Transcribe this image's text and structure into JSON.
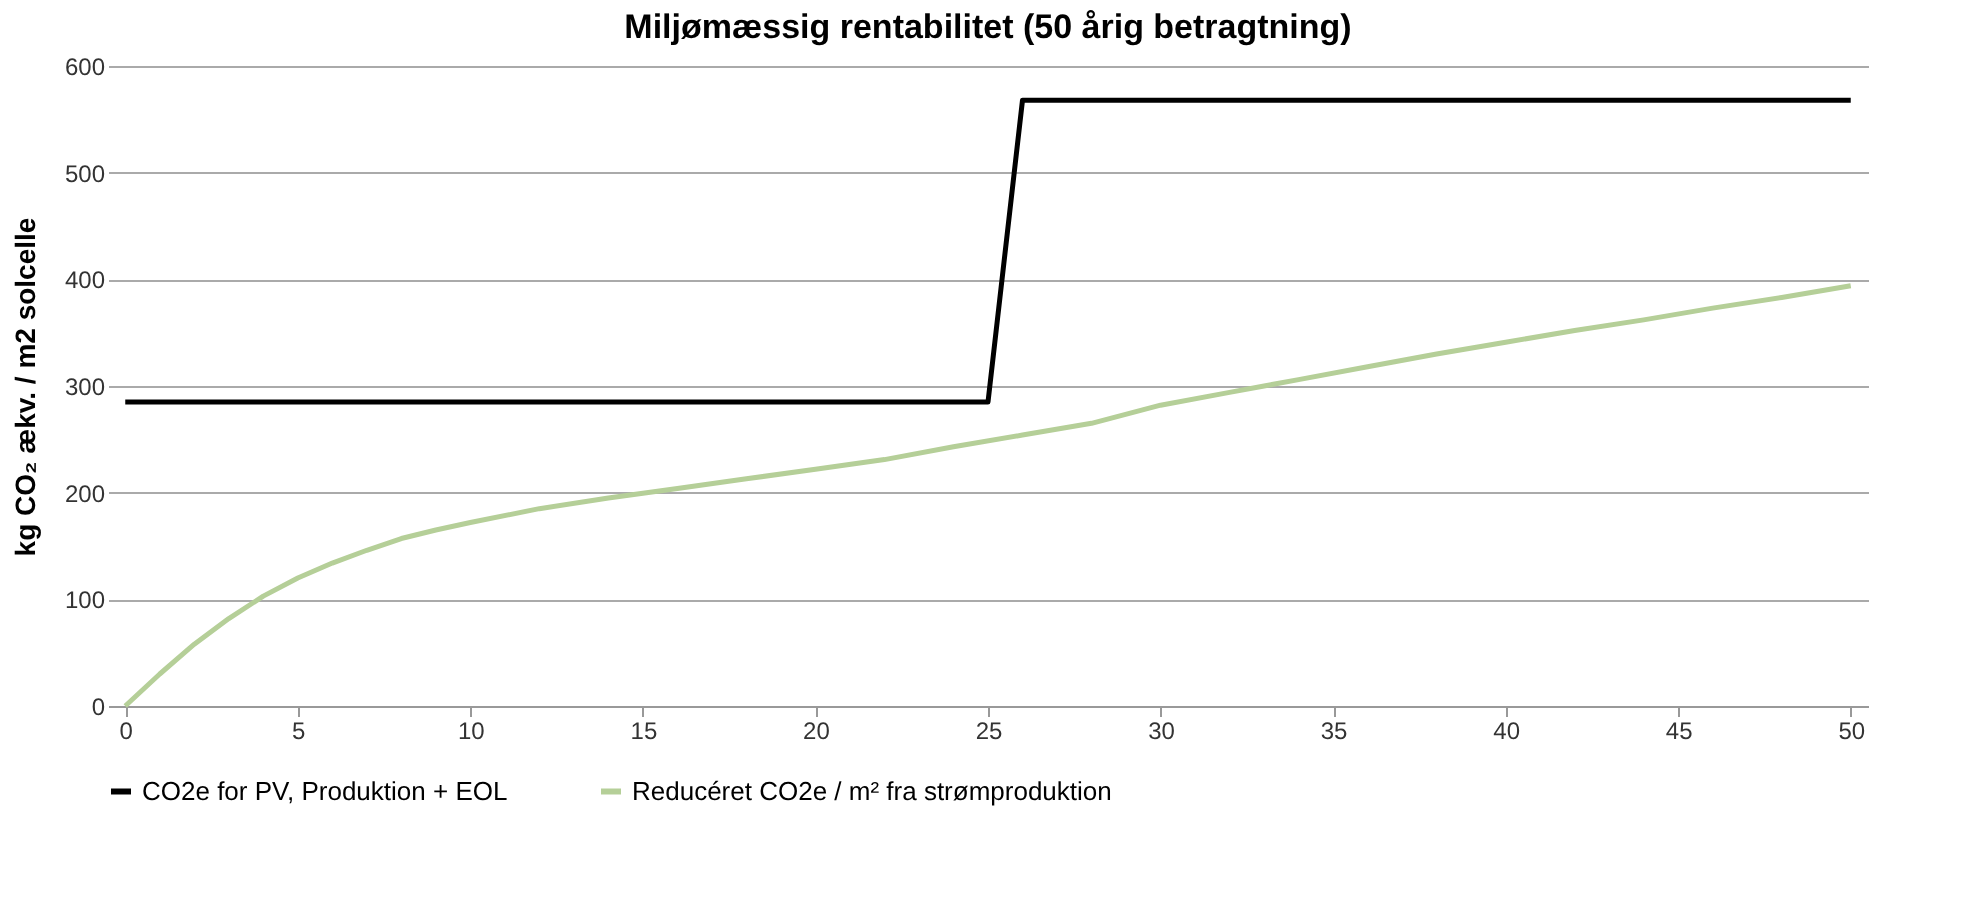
{
  "chart_data": {
    "type": "line",
    "title": "Miljømæssig rentabilitet (50 årig betragtning)",
    "ylabel": "kg CO₂ ækv. / m2 solcelle",
    "xlim": [
      -0.5,
      50.5
    ],
    "xticks": [
      0,
      5,
      10,
      15,
      20,
      25,
      30,
      35,
      40,
      45,
      50
    ],
    "ylim": [
      0,
      600
    ],
    "yticks": [
      0,
      100,
      200,
      300,
      400,
      500,
      600
    ],
    "grid": "y",
    "legend": "bottom",
    "marker": "none",
    "line_style": "solid",
    "series": [
      {
        "name": "CO2e for PV, Produktion + EOL",
        "color": "#000000",
        "x": [
          0,
          25,
          26,
          50
        ],
        "values": [
          285,
          285,
          568,
          568
        ]
      },
      {
        "name": "Reducéret CO2e / m² fra strømproduktion",
        "color": "#b5cf98",
        "x": [
          0,
          1,
          2,
          3,
          4,
          5,
          6,
          7,
          8,
          9,
          10,
          12,
          14,
          16,
          18,
          20,
          22,
          24,
          26,
          28,
          30,
          32,
          33,
          34,
          36,
          38,
          40,
          42,
          44,
          46,
          48,
          50
        ],
        "values": [
          0,
          30,
          58,
          82,
          103,
          120,
          134,
          146,
          157,
          165,
          172,
          185,
          195,
          204,
          213,
          222,
          231,
          243,
          254,
          265,
          282,
          294,
          300,
          306,
          318,
          330,
          341,
          352,
          362,
          373,
          383,
          394
        ]
      }
    ]
  }
}
